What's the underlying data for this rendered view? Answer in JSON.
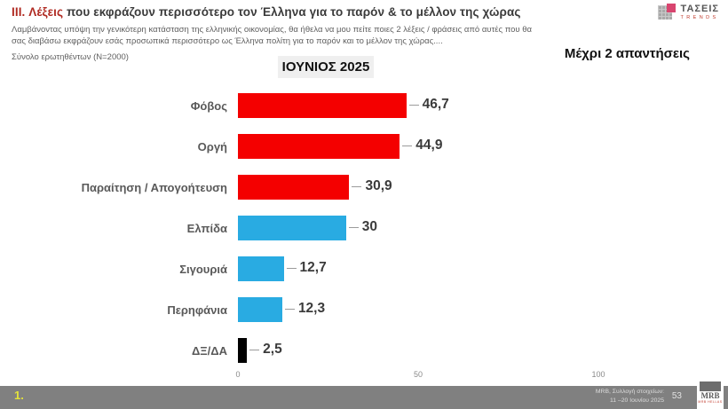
{
  "title": {
    "prefix": "III. Λέξεις",
    "rest": " που εκφράζουν περισσότερο τον Έλληνα για το παρόν & το μέλλον της χώρας"
  },
  "subtitle": {
    "line1": "Λαμβάνοντας υπόψη την γενικότερη κατάσταση της ελληνικής οικονομίας, θα ήθελα να μου πείτε ποιες 2  λέξεις / φράσεις από αυτές που θα",
    "line2": "σας διαβάσω εκφράζουν εσάς προσωπικά περισσότερο ως Έλληνα πολίτη για το παρόν και το μέλλον της χώρας...."
  },
  "sample_note": "Σύνολο ερωτηθέντων (N=2000)",
  "month_badge": "ΙΟΥΝΙΟΣ 2025",
  "max_answers": "Μέχρι 2 απαντήσεις",
  "taseis_logo": {
    "name": "ΤΑΣΕΙΣ",
    "sub": "TRENDS"
  },
  "chart_data": {
    "type": "bar",
    "orientation": "horizontal",
    "title": "ΙΟΥΝΙΟΣ 2025",
    "categories": [
      "Φόβος",
      "Οργή",
      "Παραίτηση / Απογοήτευση",
      "Ελπίδα",
      "Σιγουριά",
      "Περηφάνια",
      "ΔΞ/ΔΑ"
    ],
    "values": [
      46.7,
      44.9,
      30.9,
      30,
      12.7,
      12.3,
      2.5
    ],
    "value_labels": [
      "46,7",
      "44,9",
      "30,9",
      "30",
      "12,7",
      "12,3",
      "2,5"
    ],
    "colors": [
      "#f40000",
      "#f40000",
      "#f40000",
      "#29abe2",
      "#29abe2",
      "#29abe2",
      "#000000"
    ],
    "xlim": [
      0,
      100
    ],
    "x_ticks": [
      "0",
      "50",
      "100"
    ],
    "grid": false,
    "legend": "none"
  },
  "footer": {
    "page_prefix": "1.",
    "note_line1": "MRB, Συλλογή στοιχείων:",
    "note_line2": "11 –20 Ιουνίου 2025",
    "page_number": "53",
    "mrb_logo": "MRB",
    "mrb_logo_sub": "MRB HELLAS"
  }
}
